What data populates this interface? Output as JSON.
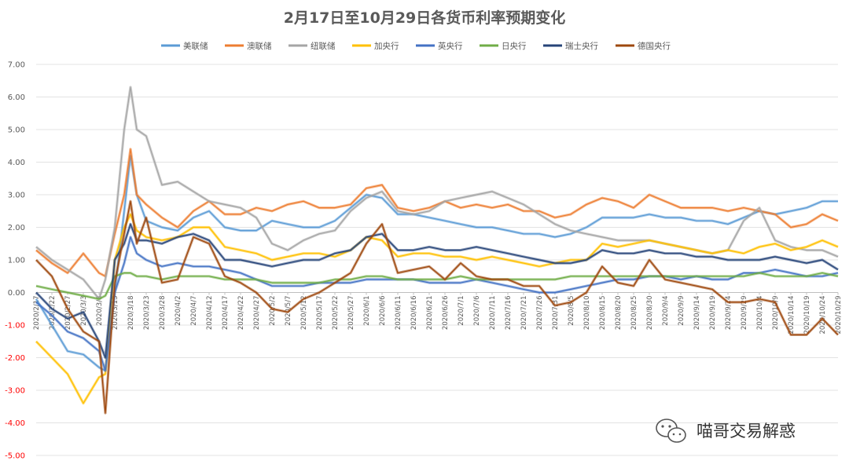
{
  "chart_data": {
    "type": "line",
    "title": "2月17日至10月29日各货币利率预期变化",
    "ylim": [
      -5,
      7
    ],
    "yticks": [
      -5,
      -4,
      -3,
      -2,
      -1,
      0,
      1,
      2,
      3,
      4,
      5,
      6,
      7
    ],
    "ytick_labels": [
      "-5.00",
      "-4.00",
      "-3.00",
      "-2.00",
      "-1.00",
      "0.00",
      "1.00",
      "2.00",
      "3.00",
      "4.00",
      "5.00",
      "6.00",
      "7.00"
    ],
    "negative_tick_color": "#ff0000",
    "positive_tick_color": "#595959",
    "grid": true,
    "legend_position": "top",
    "x_start": "2020/2/17",
    "x_end": "2020/10/29",
    "x_tick_labels": [
      "2020/2/17",
      "2020/2/22",
      "2020/2/27",
      "2020/3/3",
      "2020/3/8",
      "2020/3/13",
      "2020/3/18",
      "2020/3/23",
      "2020/3/28",
      "2020/4/2",
      "2020/4/7",
      "2020/4/12",
      "2020/4/17",
      "2020/4/22",
      "2020/4/27",
      "2020/5/2",
      "2020/5/7",
      "2020/5/12",
      "2020/5/17",
      "2020/5/22",
      "2020/5/27",
      "2020/6/1",
      "2020/6/6",
      "2020/6/11",
      "2020/6/16",
      "2020/6/21",
      "2020/6/26",
      "2020/7/1",
      "2020/7/6",
      "2020/7/11",
      "2020/7/16",
      "2020/7/21",
      "2020/7/26",
      "2020/7/31",
      "2020/8/5",
      "2020/8/10",
      "2020/8/15",
      "2020/8/20",
      "2020/8/25",
      "2020/8/30",
      "2020/9/4",
      "2020/9/9",
      "2020/9/14",
      "2020/9/19",
      "2020/9/24",
      "2020/9/29",
      "2020/10/4",
      "2020/10/9",
      "2020/10/14",
      "2020/10/19",
      "2020/10/24",
      "2020/10/29"
    ],
    "x": [
      "2020/2/17",
      "2020/2/22",
      "2020/2/27",
      "2020/3/3",
      "2020/3/8",
      "2020/3/10",
      "2020/3/13",
      "2020/3/16",
      "2020/3/18",
      "2020/3/20",
      "2020/3/23",
      "2020/3/28",
      "2020/4/2",
      "2020/4/7",
      "2020/4/12",
      "2020/4/17",
      "2020/4/22",
      "2020/4/27",
      "2020/5/2",
      "2020/5/7",
      "2020/5/12",
      "2020/5/17",
      "2020/5/22",
      "2020/5/27",
      "2020/6/1",
      "2020/6/6",
      "2020/6/11",
      "2020/6/16",
      "2020/6/21",
      "2020/6/26",
      "2020/7/1",
      "2020/7/6",
      "2020/7/11",
      "2020/7/16",
      "2020/7/21",
      "2020/7/26",
      "2020/7/31",
      "2020/8/5",
      "2020/8/10",
      "2020/8/15",
      "2020/8/20",
      "2020/8/25",
      "2020/8/30",
      "2020/9/4",
      "2020/9/9",
      "2020/9/14",
      "2020/9/19",
      "2020/9/24",
      "2020/9/29",
      "2020/10/4",
      "2020/10/9",
      "2020/10/14",
      "2020/10/19",
      "2020/10/24",
      "2020/10/29"
    ],
    "series": [
      {
        "name": "美联储",
        "color": "#5b9bd5",
        "values": [
          -0.2,
          -1.0,
          -1.8,
          -1.9,
          -2.3,
          -2.4,
          0.0,
          2.5,
          4.2,
          3.0,
          2.2,
          2.0,
          1.9,
          2.3,
          2.5,
          2.0,
          1.9,
          1.9,
          2.2,
          2.1,
          2.0,
          2.0,
          2.2,
          2.6,
          3.0,
          2.9,
          2.4,
          2.4,
          2.3,
          2.2,
          2.1,
          2.0,
          2.0,
          1.9,
          1.8,
          1.8,
          1.7,
          1.8,
          2.0,
          2.3,
          2.3,
          2.3,
          2.4,
          2.3,
          2.3,
          2.2,
          2.2,
          2.1,
          2.3,
          2.5,
          2.4,
          2.5,
          2.6,
          2.8,
          2.8
        ]
      },
      {
        "name": "澳联储",
        "color": "#ed7d31",
        "values": [
          1.3,
          0.9,
          0.6,
          1.2,
          0.6,
          0.5,
          1.8,
          3.0,
          4.4,
          3.0,
          2.7,
          2.3,
          2.0,
          2.5,
          2.8,
          2.4,
          2.4,
          2.6,
          2.5,
          2.7,
          2.8,
          2.6,
          2.6,
          2.7,
          3.2,
          3.3,
          2.6,
          2.5,
          2.6,
          2.8,
          2.6,
          2.7,
          2.6,
          2.7,
          2.5,
          2.5,
          2.3,
          2.4,
          2.7,
          2.9,
          2.8,
          2.6,
          3.0,
          2.8,
          2.6,
          2.6,
          2.6,
          2.5,
          2.6,
          2.5,
          2.4,
          2.0,
          2.1,
          2.4,
          2.2
        ]
      },
      {
        "name": "纽联储",
        "color": "#a5a5a5",
        "values": [
          1.4,
          1.0,
          0.7,
          0.4,
          -0.2,
          0.4,
          2.0,
          5.0,
          6.3,
          5.0,
          4.8,
          3.3,
          3.4,
          3.1,
          2.8,
          2.7,
          2.6,
          2.3,
          1.5,
          1.3,
          1.6,
          1.8,
          1.9,
          2.5,
          2.9,
          3.1,
          2.5,
          2.4,
          2.5,
          2.8,
          2.9,
          3.0,
          3.1,
          2.9,
          2.7,
          2.4,
          2.1,
          1.9,
          1.8,
          1.7,
          1.6,
          1.6,
          1.6,
          1.5,
          1.4,
          1.3,
          1.2,
          1.3,
          2.2,
          2.6,
          1.6,
          1.4,
          1.3,
          1.3,
          1.1
        ]
      },
      {
        "name": "加央行",
        "color": "#ffc000",
        "values": [
          -1.5,
          -2.0,
          -2.5,
          -3.4,
          -2.6,
          -2.5,
          1.0,
          2.0,
          2.4,
          1.9,
          1.7,
          1.6,
          1.7,
          2.0,
          2.0,
          1.4,
          1.3,
          1.2,
          1.0,
          1.1,
          1.2,
          1.2,
          1.1,
          1.3,
          1.7,
          1.6,
          1.1,
          1.2,
          1.2,
          1.1,
          1.1,
          1.0,
          1.1,
          1.0,
          0.9,
          0.8,
          0.9,
          1.0,
          1.0,
          1.5,
          1.4,
          1.5,
          1.6,
          1.5,
          1.4,
          1.3,
          1.2,
          1.3,
          1.2,
          1.4,
          1.5,
          1.3,
          1.4,
          1.6,
          1.4
        ]
      },
      {
        "name": "英央行",
        "color": "#4472c4",
        "values": [
          -0.3,
          -0.7,
          -1.2,
          -1.4,
          -1.8,
          -2.4,
          0.0,
          0.9,
          1.7,
          1.2,
          1.0,
          0.8,
          0.9,
          0.8,
          0.8,
          0.7,
          0.6,
          0.4,
          0.2,
          0.2,
          0.2,
          0.3,
          0.3,
          0.3,
          0.4,
          0.4,
          0.4,
          0.4,
          0.3,
          0.3,
          0.3,
          0.4,
          0.3,
          0.2,
          0.1,
          0.0,
          0.0,
          0.1,
          0.2,
          0.3,
          0.4,
          0.4,
          0.5,
          0.5,
          0.4,
          0.5,
          0.4,
          0.4,
          0.6,
          0.6,
          0.7,
          0.6,
          0.5,
          0.5,
          0.6
        ]
      },
      {
        "name": "日央行",
        "color": "#70ad47",
        "values": [
          0.2,
          0.1,
          0.0,
          -0.1,
          -0.2,
          -0.1,
          0.5,
          0.6,
          0.6,
          0.5,
          0.5,
          0.4,
          0.5,
          0.5,
          0.5,
          0.4,
          0.4,
          0.4,
          0.3,
          0.3,
          0.3,
          0.3,
          0.4,
          0.4,
          0.5,
          0.5,
          0.4,
          0.4,
          0.4,
          0.4,
          0.5,
          0.4,
          0.4,
          0.4,
          0.4,
          0.4,
          0.4,
          0.5,
          0.5,
          0.5,
          0.5,
          0.5,
          0.5,
          0.5,
          0.5,
          0.5,
          0.5,
          0.5,
          0.5,
          0.6,
          0.5,
          0.5,
          0.5,
          0.6,
          0.5
        ]
      },
      {
        "name": "瑞士央行",
        "color": "#264478",
        "values": [
          0.0,
          -0.5,
          -0.8,
          -0.6,
          -1.5,
          -2.0,
          1.0,
          1.5,
          2.1,
          1.6,
          1.6,
          1.5,
          1.7,
          1.8,
          1.6,
          1.0,
          1.0,
          0.9,
          0.8,
          0.9,
          1.0,
          1.0,
          1.2,
          1.3,
          1.7,
          1.8,
          1.3,
          1.3,
          1.4,
          1.3,
          1.3,
          1.4,
          1.3,
          1.2,
          1.1,
          1.0,
          0.9,
          0.9,
          1.0,
          1.3,
          1.2,
          1.2,
          1.3,
          1.2,
          1.2,
          1.1,
          1.1,
          1.0,
          1.0,
          1.0,
          1.1,
          1.0,
          0.9,
          1.0,
          0.7
        ]
      },
      {
        "name": "德国央行",
        "color": "#9e480e",
        "values": [
          1.0,
          0.5,
          -0.5,
          -1.2,
          -1.5,
          -3.7,
          0.3,
          1.8,
          2.8,
          1.5,
          2.3,
          0.3,
          0.4,
          1.7,
          1.5,
          0.5,
          0.3,
          0.0,
          -0.5,
          -0.6,
          -0.2,
          0.0,
          0.3,
          0.6,
          1.5,
          2.1,
          0.6,
          0.7,
          0.8,
          0.4,
          0.9,
          0.5,
          0.4,
          0.4,
          0.2,
          0.2,
          -0.4,
          -0.3,
          0.0,
          0.8,
          0.3,
          0.2,
          1.0,
          0.4,
          0.3,
          0.2,
          0.1,
          -0.3,
          -0.3,
          -0.2,
          -0.3,
          -1.3,
          -1.3,
          -0.8,
          -1.3
        ]
      }
    ]
  },
  "watermark": {
    "text": "喵哥交易解惑",
    "icon": "wechat-icon"
  }
}
